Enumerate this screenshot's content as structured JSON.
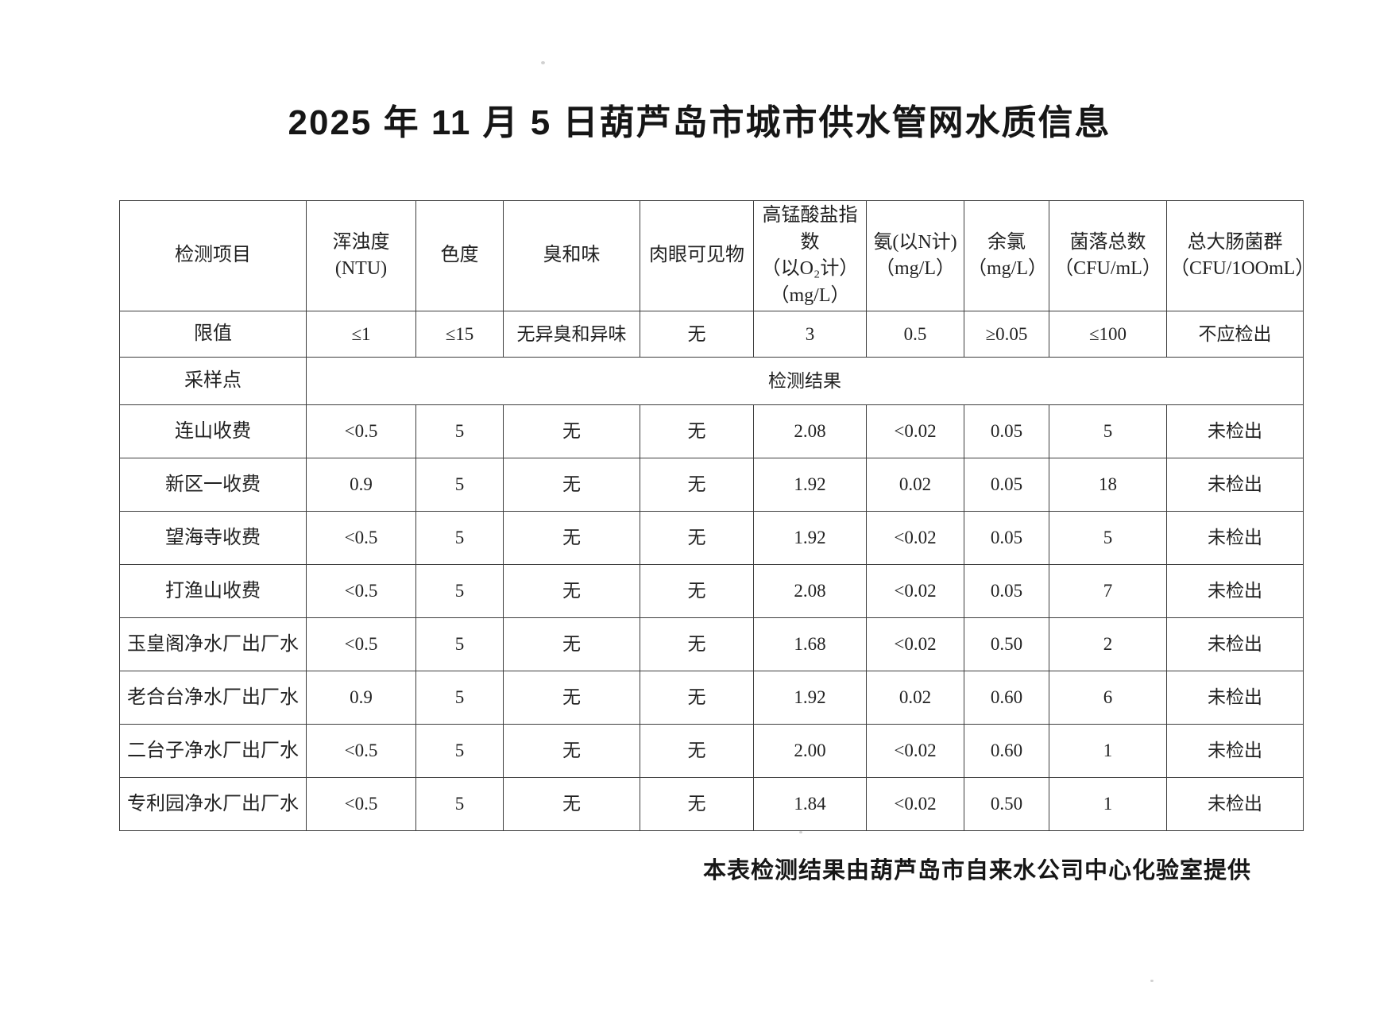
{
  "page": {
    "title": "2025 年 11 月 5 日葫芦岛市城市供水管网水质信息",
    "footer": "本表检测结果由葫芦岛市自来水公司中心化验室提供"
  },
  "table": {
    "item_header": "检测项目",
    "columns": [
      "浑浊度(NTU)",
      "色度",
      "臭和味",
      "肉眼可见物",
      "高锰酸盐指数\n（以O₂计）\n（mg/L）",
      "氨(以N计)\n（mg/L）",
      "余氯\n（mg/L）",
      "菌落总数\n（CFU/mL）",
      "总大肠菌群\n（CFU/1OOmL）"
    ],
    "limit_row": {
      "label": "限值",
      "values": [
        "≤1",
        "≤15",
        "无异臭和异味",
        "无",
        "3",
        "0.5",
        "≥0.05",
        "≤100",
        "不应检出"
      ]
    },
    "sampling_row": {
      "label": "采样点",
      "result_label": "检测结果"
    },
    "rows": [
      {
        "site": "连山收费",
        "values": [
          "<0.5",
          "5",
          "无",
          "无",
          "2.08",
          "<0.02",
          "0.05",
          "5",
          "未检出"
        ]
      },
      {
        "site": "新区一收费",
        "values": [
          "0.9",
          "5",
          "无",
          "无",
          "1.92",
          "0.02",
          "0.05",
          "18",
          "未检出"
        ]
      },
      {
        "site": "望海寺收费",
        "values": [
          "<0.5",
          "5",
          "无",
          "无",
          "1.92",
          "<0.02",
          "0.05",
          "5",
          "未检出"
        ]
      },
      {
        "site": "打渔山收费",
        "values": [
          "<0.5",
          "5",
          "无",
          "无",
          "2.08",
          "<0.02",
          "0.05",
          "7",
          "未检出"
        ]
      },
      {
        "site": "玉皇阁净水厂出厂水",
        "values": [
          "<0.5",
          "5",
          "无",
          "无",
          "1.68",
          "<0.02",
          "0.50",
          "2",
          "未检出"
        ]
      },
      {
        "site": "老合台净水厂出厂水",
        "values": [
          "0.9",
          "5",
          "无",
          "无",
          "1.92",
          "0.02",
          "0.60",
          "6",
          "未检出"
        ]
      },
      {
        "site": "二台子净水厂出厂水",
        "values": [
          "<0.5",
          "5",
          "无",
          "无",
          "2.00",
          "<0.02",
          "0.60",
          "1",
          "未检出"
        ]
      },
      {
        "site": "专利园净水厂出厂水",
        "values": [
          "<0.5",
          "5",
          "无",
          "无",
          "1.84",
          "<0.02",
          "0.50",
          "1",
          "未检出"
        ]
      }
    ]
  }
}
